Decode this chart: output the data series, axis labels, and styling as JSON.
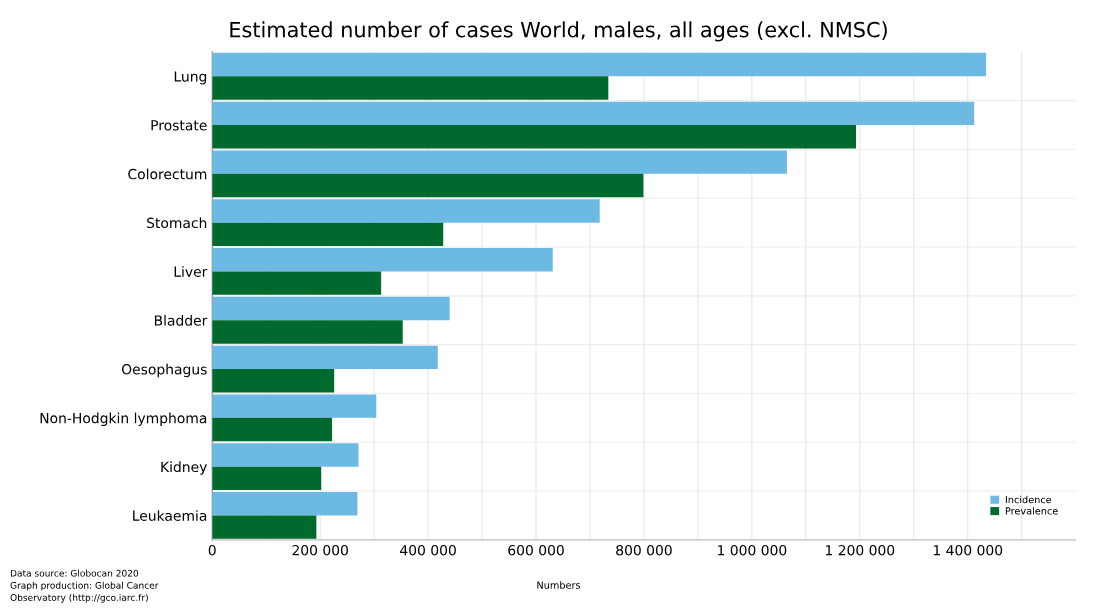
{
  "chart_data": {
    "type": "bar",
    "orientation": "horizontal",
    "title": "Estimated number of cases World, males, all ages (excl. NMSC)",
    "xlabel": "Numbers",
    "categories": [
      "Lung",
      "Prostate",
      "Colorectum",
      "Stomach",
      "Liver",
      "Bladder",
      "Oesophagus",
      "Non-Hodgkin lymphoma",
      "Kidney",
      "Leukaemia"
    ],
    "series": [
      {
        "name": "Incidence",
        "color": "#6cb9e4",
        "values": [
          1434000,
          1412000,
          1065000,
          718000,
          631000,
          440000,
          418000,
          304000,
          271000,
          269000
        ]
      },
      {
        "name": "Prevalence",
        "color": "#006a2e",
        "values": [
          734000,
          1193000,
          799000,
          428000,
          313000,
          353000,
          226000,
          222000,
          202000,
          193000
        ]
      }
    ],
    "xlim": [
      0,
      1600000
    ],
    "xticks": [
      0,
      {
        "value": 100000,
        "label": null
      },
      {
        "value": 200000,
        "label": "200 000"
      },
      {
        "value": 300000,
        "label": null
      },
      {
        "value": 400000,
        "label": "400 000"
      },
      {
        "value": 500000,
        "label": null
      },
      {
        "value": 600000,
        "label": "600 000"
      },
      {
        "value": 700000,
        "label": null
      },
      {
        "value": 800000,
        "label": "800 000"
      },
      {
        "value": 900000,
        "label": null
      },
      {
        "value": 1000000,
        "label": "1 000 000"
      },
      {
        "value": 1100000,
        "label": null
      },
      {
        "value": 1200000,
        "label": "1 200 000"
      },
      {
        "value": 1300000,
        "label": null
      },
      {
        "value": 1400000,
        "label": "1 400 000"
      },
      {
        "value": 1500000,
        "label": null
      }
    ],
    "grid": true,
    "legend": "bottom right",
    "annotations": [
      "Data source: Globocan 2020\nGraph production: Global Cancer\nObservatory (http://gco.iarc.fr)"
    ]
  }
}
